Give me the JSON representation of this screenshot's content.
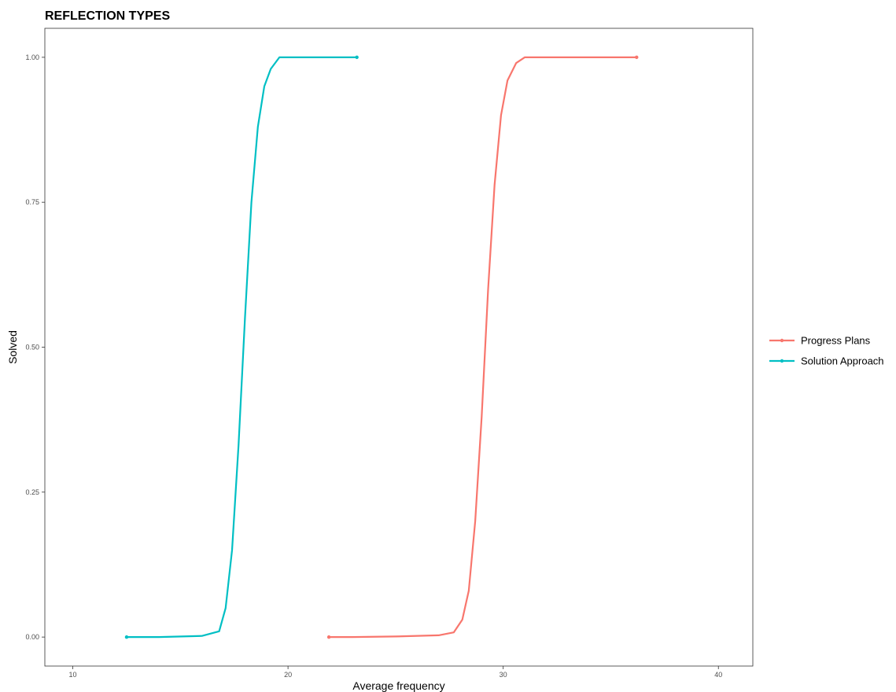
{
  "chart_data": {
    "type": "line",
    "title": "REFLECTION TYPES",
    "xlabel": "Average frequency",
    "ylabel": "Solved",
    "xlim": [
      8.7,
      41.6
    ],
    "ylim": [
      -0.05,
      1.05
    ],
    "x_ticks": [
      10,
      20,
      30,
      40
    ],
    "x_tick_labels": [
      "10",
      "20",
      "30",
      "40"
    ],
    "y_ticks": [
      0,
      0.25,
      0.5,
      0.75,
      1.0
    ],
    "y_tick_labels": [
      "0.00",
      "0.25",
      "0.50",
      "0.75",
      "1.00"
    ],
    "grid": false,
    "legend_position": "right",
    "series": [
      {
        "name": "Progress Plans",
        "color": "#F8766D",
        "x": [
          21.9,
          23,
          25,
          27,
          27.7,
          28.1,
          28.4,
          28.7,
          29.0,
          29.3,
          29.6,
          29.9,
          30.2,
          30.6,
          31.0,
          32,
          34,
          36.2
        ],
        "y": [
          0.0,
          0.0,
          0.001,
          0.003,
          0.008,
          0.03,
          0.08,
          0.2,
          0.38,
          0.6,
          0.78,
          0.9,
          0.96,
          0.99,
          1.0,
          1.0,
          1.0,
          1.0
        ]
      },
      {
        "name": "Solution Approach",
        "color": "#00BFC4",
        "x": [
          12.5,
          14,
          16,
          16.8,
          17.1,
          17.4,
          17.7,
          18.0,
          18.3,
          18.6,
          18.9,
          19.2,
          19.6,
          20.2,
          21,
          22,
          23.2
        ],
        "y": [
          0.0,
          0.0,
          0.002,
          0.01,
          0.05,
          0.15,
          0.33,
          0.55,
          0.75,
          0.88,
          0.95,
          0.98,
          1.0,
          1.0,
          1.0,
          1.0,
          1.0
        ]
      }
    ]
  }
}
